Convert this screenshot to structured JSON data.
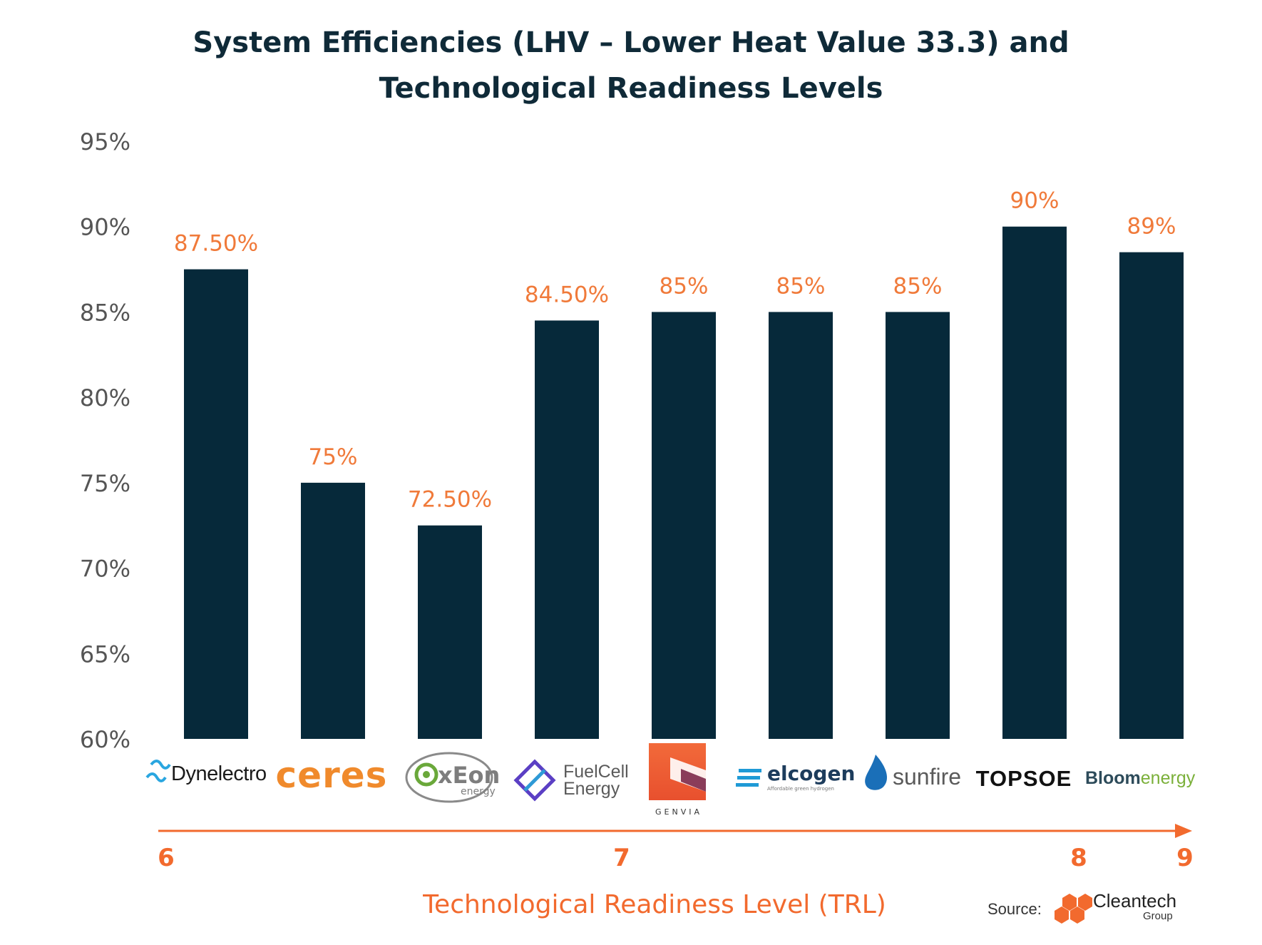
{
  "chart_data": {
    "type": "bar",
    "title_lines": [
      "System Efficiencies (LHV – Lower Heat Value 33.3) and",
      "Technological Readiness Levels"
    ],
    "categories": [
      "Dynelectro",
      "ceres",
      "OxEon energy",
      "FuelCell Energy",
      "GENVIA",
      "elcogen",
      "sunfire",
      "TOPSOE",
      "Bloomenergy"
    ],
    "values": [
      87.5,
      75,
      72.5,
      84.5,
      85,
      85,
      85,
      90,
      88.5
    ],
    "data_labels": [
      "87.50%",
      "75%",
      "72.50%",
      "84.50%",
      "85%",
      "85%",
      "85%",
      "90%",
      "89%"
    ],
    "ylim": [
      60,
      95
    ],
    "yticks": [
      60,
      65,
      70,
      75,
      80,
      85,
      90,
      95
    ],
    "ytick_labels": [
      "60%",
      "65%",
      "70%",
      "75%",
      "80%",
      "85%",
      "90%",
      "95%"
    ],
    "grid": false,
    "trl_axis": {
      "label": "Technological Readiness Level (TRL)",
      "ticks": [
        {
          "label": "6",
          "at": "Dynelectro"
        },
        {
          "label": "7",
          "at": "FuelCell Energy"
        },
        {
          "label": "8",
          "at": "TOPSOE"
        },
        {
          "label": "9",
          "at": "Bloomenergy"
        }
      ]
    },
    "colors": {
      "bar": "#06293a",
      "label": "#f07a3a",
      "axis_text": "#555555",
      "title": "#0f2a38",
      "trl": "#f26a2e"
    }
  },
  "logos": {
    "dynelectro": "Dynelectro",
    "ceres": "ceres",
    "oxeon_main": "xEon",
    "oxeon_sub": "energy",
    "fuelcell_1": "FuelCell",
    "fuelcell_2": "Energy",
    "genvia": "GENVIA",
    "elcogen": "elcogen",
    "elcogen_tag": "Affordable green hydrogen",
    "sunfire": "sunfire",
    "topsoe": "TOPSOE",
    "bloom_a": "Bloom",
    "bloom_b": "energy"
  },
  "source": {
    "label": "Source:",
    "org": "Cleantech",
    "org_sub": "Group"
  }
}
